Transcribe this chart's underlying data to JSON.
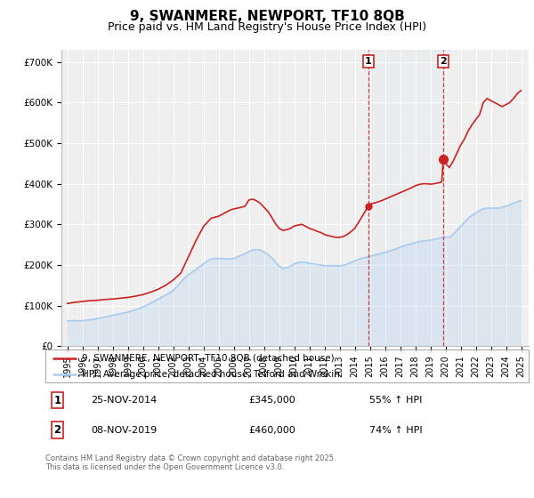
{
  "title": "9, SWANMERE, NEWPORT, TF10 8QB",
  "subtitle": "Price paid vs. HM Land Registry's House Price Index (HPI)",
  "title_fontsize": 11,
  "subtitle_fontsize": 9,
  "background_color": "#ffffff",
  "plot_bg_color": "#efefef",
  "grid_color": "#ffffff",
  "hpi_color": "#aaccee",
  "price_color": "#cc2222",
  "ylim": [
    0,
    730000
  ],
  "yticks": [
    0,
    100000,
    200000,
    300000,
    400000,
    500000,
    600000,
    700000
  ],
  "ytick_labels": [
    "£0",
    "£100K",
    "£200K",
    "£300K",
    "£400K",
    "£500K",
    "£600K",
    "£700K"
  ],
  "xlim_start": 1994.6,
  "xlim_end": 2025.5,
  "sale1_x": 2014.9,
  "sale1_y": 345000,
  "sale2_x": 2019.85,
  "sale2_y": 460000,
  "annotation1_date": "25-NOV-2014",
  "annotation1_price": "£345,000",
  "annotation1_hpi": "55% ↑ HPI",
  "annotation2_date": "08-NOV-2019",
  "annotation2_price": "£460,000",
  "annotation2_hpi": "74% ↑ HPI",
  "legend_line1": "9, SWANMERE, NEWPORT, TF10 8QB (detached house)",
  "legend_line2": "HPI: Average price, detached house, Telford and Wrekin",
  "footer_text": "Contains HM Land Registry data © Crown copyright and database right 2025.\nThis data is licensed under the Open Government Licence v3.0.",
  "hpi_data": [
    [
      1995.0,
      62000
    ],
    [
      1995.25,
      62500
    ],
    [
      1995.5,
      63000
    ],
    [
      1995.75,
      62000
    ],
    [
      1996.0,
      63000
    ],
    [
      1996.25,
      64000
    ],
    [
      1996.5,
      65000
    ],
    [
      1996.75,
      66000
    ],
    [
      1997.0,
      68000
    ],
    [
      1997.25,
      70000
    ],
    [
      1997.5,
      72000
    ],
    [
      1997.75,
      74000
    ],
    [
      1998.0,
      76000
    ],
    [
      1998.25,
      78000
    ],
    [
      1998.5,
      80000
    ],
    [
      1998.75,
      82000
    ],
    [
      1999.0,
      84000
    ],
    [
      1999.25,
      87000
    ],
    [
      1999.5,
      90000
    ],
    [
      1999.75,
      93000
    ],
    [
      2000.0,
      97000
    ],
    [
      2000.25,
      101000
    ],
    [
      2000.5,
      106000
    ],
    [
      2000.75,
      111000
    ],
    [
      2001.0,
      116000
    ],
    [
      2001.25,
      121000
    ],
    [
      2001.5,
      126000
    ],
    [
      2001.75,
      131000
    ],
    [
      2002.0,
      138000
    ],
    [
      2002.25,
      147000
    ],
    [
      2002.5,
      158000
    ],
    [
      2002.75,
      168000
    ],
    [
      2003.0,
      176000
    ],
    [
      2003.25,
      183000
    ],
    [
      2003.5,
      189000
    ],
    [
      2003.75,
      196000
    ],
    [
      2004.0,
      203000
    ],
    [
      2004.25,
      210000
    ],
    [
      2004.5,
      214000
    ],
    [
      2004.75,
      216000
    ],
    [
      2005.0,
      216000
    ],
    [
      2005.25,
      216000
    ],
    [
      2005.5,
      215000
    ],
    [
      2005.75,
      215000
    ],
    [
      2006.0,
      216000
    ],
    [
      2006.25,
      220000
    ],
    [
      2006.5,
      224000
    ],
    [
      2006.75,
      228000
    ],
    [
      2007.0,
      233000
    ],
    [
      2007.25,
      237000
    ],
    [
      2007.5,
      238000
    ],
    [
      2007.75,
      237000
    ],
    [
      2008.0,
      232000
    ],
    [
      2008.25,
      226000
    ],
    [
      2008.5,
      218000
    ],
    [
      2008.75,
      207000
    ],
    [
      2009.0,
      197000
    ],
    [
      2009.25,
      192000
    ],
    [
      2009.5,
      193000
    ],
    [
      2009.75,
      197000
    ],
    [
      2010.0,
      203000
    ],
    [
      2010.25,
      206000
    ],
    [
      2010.5,
      207000
    ],
    [
      2010.75,
      206000
    ],
    [
      2011.0,
      204000
    ],
    [
      2011.25,
      203000
    ],
    [
      2011.5,
      201000
    ],
    [
      2011.75,
      200000
    ],
    [
      2012.0,
      198000
    ],
    [
      2012.25,
      198000
    ],
    [
      2012.5,
      198000
    ],
    [
      2012.75,
      198000
    ],
    [
      2013.0,
      198000
    ],
    [
      2013.25,
      199000
    ],
    [
      2013.5,
      202000
    ],
    [
      2013.75,
      206000
    ],
    [
      2014.0,
      210000
    ],
    [
      2014.25,
      214000
    ],
    [
      2014.5,
      217000
    ],
    [
      2014.75,
      219000
    ],
    [
      2015.0,
      221000
    ],
    [
      2015.25,
      224000
    ],
    [
      2015.5,
      226000
    ],
    [
      2015.75,
      228000
    ],
    [
      2016.0,
      231000
    ],
    [
      2016.25,
      234000
    ],
    [
      2016.5,
      237000
    ],
    [
      2016.75,
      240000
    ],
    [
      2017.0,
      244000
    ],
    [
      2017.25,
      247000
    ],
    [
      2017.5,
      250000
    ],
    [
      2017.75,
      252000
    ],
    [
      2018.0,
      255000
    ],
    [
      2018.25,
      257000
    ],
    [
      2018.5,
      259000
    ],
    [
      2018.75,
      260000
    ],
    [
      2019.0,
      261000
    ],
    [
      2019.25,
      263000
    ],
    [
      2019.5,
      265000
    ],
    [
      2019.75,
      267000
    ],
    [
      2020.0,
      269000
    ],
    [
      2020.25,
      268000
    ],
    [
      2020.5,
      275000
    ],
    [
      2020.75,
      285000
    ],
    [
      2021.0,
      295000
    ],
    [
      2021.25,
      305000
    ],
    [
      2021.5,
      315000
    ],
    [
      2021.75,
      322000
    ],
    [
      2022.0,
      328000
    ],
    [
      2022.25,
      334000
    ],
    [
      2022.5,
      338000
    ],
    [
      2022.75,
      340000
    ],
    [
      2023.0,
      340000
    ],
    [
      2023.25,
      340000
    ],
    [
      2023.5,
      340000
    ],
    [
      2023.75,
      342000
    ],
    [
      2024.0,
      345000
    ],
    [
      2024.25,
      348000
    ],
    [
      2024.5,
      352000
    ],
    [
      2024.75,
      356000
    ],
    [
      2025.0,
      358000
    ]
  ],
  "price_data": [
    [
      1995.0,
      105000
    ],
    [
      1995.5,
      108000
    ],
    [
      1996.0,
      110000
    ],
    [
      1996.5,
      112000
    ],
    [
      1997.0,
      113000
    ],
    [
      1997.5,
      115000
    ],
    [
      1998.0,
      116000
    ],
    [
      1998.5,
      118000
    ],
    [
      1999.0,
      120000
    ],
    [
      1999.5,
      123000
    ],
    [
      2000.0,
      127000
    ],
    [
      2000.5,
      133000
    ],
    [
      2001.0,
      140000
    ],
    [
      2001.5,
      150000
    ],
    [
      2002.0,
      163000
    ],
    [
      2002.5,
      180000
    ],
    [
      2003.0,
      220000
    ],
    [
      2003.5,
      260000
    ],
    [
      2004.0,
      295000
    ],
    [
      2004.5,
      315000
    ],
    [
      2005.0,
      320000
    ],
    [
      2005.25,
      325000
    ],
    [
      2005.5,
      330000
    ],
    [
      2005.75,
      335000
    ],
    [
      2006.0,
      338000
    ],
    [
      2006.25,
      340000
    ],
    [
      2006.5,
      342000
    ],
    [
      2006.75,
      345000
    ],
    [
      2007.0,
      360000
    ],
    [
      2007.25,
      362000
    ],
    [
      2007.5,
      358000
    ],
    [
      2007.75,
      352000
    ],
    [
      2008.0,
      342000
    ],
    [
      2008.25,
      332000
    ],
    [
      2008.5,
      318000
    ],
    [
      2008.75,
      302000
    ],
    [
      2009.0,
      290000
    ],
    [
      2009.25,
      285000
    ],
    [
      2009.5,
      287000
    ],
    [
      2009.75,
      290000
    ],
    [
      2010.0,
      296000
    ],
    [
      2010.25,
      298000
    ],
    [
      2010.5,
      300000
    ],
    [
      2010.75,
      295000
    ],
    [
      2011.0,
      290000
    ],
    [
      2011.25,
      287000
    ],
    [
      2011.5,
      283000
    ],
    [
      2011.75,
      280000
    ],
    [
      2012.0,
      275000
    ],
    [
      2012.25,
      272000
    ],
    [
      2012.5,
      270000
    ],
    [
      2012.75,
      268000
    ],
    [
      2013.0,
      268000
    ],
    [
      2013.25,
      270000
    ],
    [
      2013.5,
      275000
    ],
    [
      2013.75,
      282000
    ],
    [
      2014.0,
      290000
    ],
    [
      2014.5,
      320000
    ],
    [
      2014.9,
      345000
    ],
    [
      2015.0,
      350000
    ],
    [
      2015.25,
      352000
    ],
    [
      2015.5,
      355000
    ],
    [
      2015.75,
      358000
    ],
    [
      2016.0,
      362000
    ],
    [
      2016.25,
      366000
    ],
    [
      2016.5,
      370000
    ],
    [
      2016.75,
      374000
    ],
    [
      2017.0,
      378000
    ],
    [
      2017.25,
      382000
    ],
    [
      2017.5,
      386000
    ],
    [
      2017.75,
      390000
    ],
    [
      2018.0,
      395000
    ],
    [
      2018.25,
      398000
    ],
    [
      2018.5,
      400000
    ],
    [
      2018.75,
      400000
    ],
    [
      2019.0,
      399000
    ],
    [
      2019.25,
      400000
    ],
    [
      2019.5,
      402000
    ],
    [
      2019.75,
      404000
    ],
    [
      2019.85,
      460000
    ],
    [
      2020.0,
      450000
    ],
    [
      2020.25,
      440000
    ],
    [
      2020.5,
      455000
    ],
    [
      2020.75,
      475000
    ],
    [
      2021.0,
      495000
    ],
    [
      2021.25,
      510000
    ],
    [
      2021.5,
      530000
    ],
    [
      2021.75,
      545000
    ],
    [
      2022.0,
      558000
    ],
    [
      2022.25,
      570000
    ],
    [
      2022.5,
      600000
    ],
    [
      2022.75,
      610000
    ],
    [
      2023.0,
      605000
    ],
    [
      2023.25,
      600000
    ],
    [
      2023.5,
      595000
    ],
    [
      2023.75,
      590000
    ],
    [
      2024.0,
      595000
    ],
    [
      2024.25,
      600000
    ],
    [
      2024.5,
      610000
    ],
    [
      2024.75,
      622000
    ],
    [
      2025.0,
      630000
    ]
  ]
}
